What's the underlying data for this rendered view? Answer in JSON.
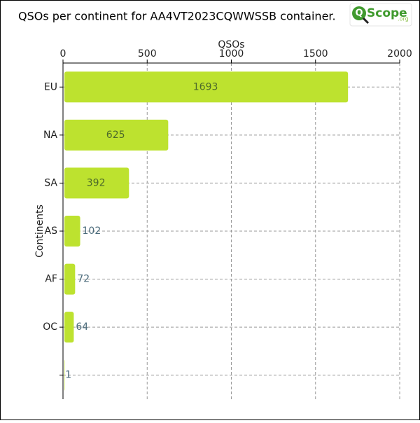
{
  "chart_data": {
    "type": "bar",
    "orientation": "horizontal",
    "title": "QSOs per continent for AA4VT2023CQWWSSB container.",
    "xlabel": "QSOs",
    "ylabel": "Continents",
    "categories": [
      "EU",
      "NA",
      "SA",
      "AS",
      "AF",
      "OC",
      null
    ],
    "values": [
      1693,
      625,
      392,
      102,
      72,
      64,
      1
    ],
    "color": "#bde22f",
    "xlim": [
      0,
      2000
    ],
    "xticks": [
      0,
      500,
      1000,
      1500,
      2000
    ],
    "grid": true,
    "logo": {
      "mark": "Q",
      "text": "Scope",
      "suffix": ".org"
    }
  }
}
